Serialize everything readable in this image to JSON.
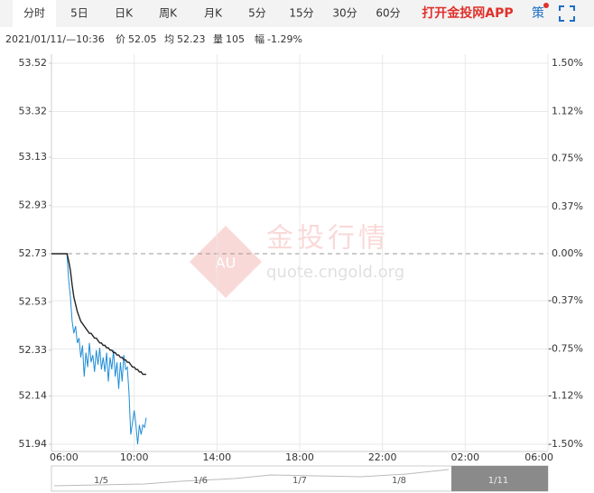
{
  "tabs": [
    "分时",
    "5日",
    "日K",
    "周K",
    "月K",
    "5分",
    "15分",
    "30分",
    "60分"
  ],
  "app_link": "打开金投网APP",
  "strategy": "策",
  "info": {
    "time": "2021/01/11/—10:36",
    "price_label": "价",
    "price": "52.05",
    "avg_label": "均",
    "avg": "52.23",
    "volume_label": "量",
    "volume": "105",
    "change_label": "幅",
    "change": "-1.29%"
  },
  "watermark": {
    "logo": "AU",
    "name": "金投行情",
    "site": "quote.cngold.org"
  },
  "navigator": {
    "labels": [
      "1/5",
      "1/6",
      "1/7",
      "1/8",
      "1/11"
    ]
  },
  "chart_data": {
    "type": "line",
    "x": [
      "06:00",
      "06:05",
      "06:10",
      "06:15",
      "06:20",
      "06:25",
      "06:30",
      "06:35",
      "06:40",
      "06:45",
      "06:50",
      "06:55",
      "07:00",
      "07:05",
      "07:10",
      "07:15",
      "07:20",
      "07:25",
      "07:30",
      "07:35",
      "07:40",
      "07:45",
      "07:50",
      "07:55",
      "08:00",
      "08:05",
      "08:10",
      "08:15",
      "08:20",
      "08:25",
      "08:30",
      "08:35",
      "08:40",
      "08:45",
      "08:50",
      "08:55",
      "09:00",
      "09:05",
      "09:10",
      "09:15",
      "09:20",
      "09:25",
      "09:30",
      "09:35",
      "09:40",
      "09:45",
      "09:50",
      "09:55",
      "10:00",
      "10:05",
      "10:10",
      "10:15",
      "10:20",
      "10:25",
      "10:30",
      "10:35"
    ],
    "series": [
      {
        "color": "#1f8dd6",
        "values": [
          52.73,
          52.73,
          52.73,
          52.73,
          52.73,
          52.73,
          52.73,
          52.73,
          52.73,
          52.73,
          52.62,
          52.55,
          52.45,
          52.4,
          52.43,
          52.36,
          52.38,
          52.3,
          52.35,
          52.22,
          52.32,
          52.26,
          52.36,
          52.28,
          52.31,
          52.24,
          52.33,
          52.27,
          52.34,
          52.25,
          52.3,
          52.24,
          52.32,
          52.2,
          52.3,
          52.25,
          52.33,
          52.22,
          52.28,
          52.17,
          52.28,
          52.2,
          52.31,
          52.25,
          52.26,
          52.15,
          51.98,
          52.03,
          52.08,
          52.02,
          51.94,
          52.02,
          51.98,
          52.02,
          52.01,
          52.05
        ]
      },
      {
        "color": "#222222",
        "values": [
          52.73,
          52.73,
          52.73,
          52.73,
          52.73,
          52.73,
          52.73,
          52.73,
          52.73,
          52.73,
          52.7,
          52.66,
          52.6,
          52.55,
          52.52,
          52.49,
          52.47,
          52.45,
          52.44,
          52.43,
          52.42,
          52.41,
          52.4,
          52.4,
          52.39,
          52.38,
          52.38,
          52.37,
          52.36,
          52.36,
          52.35,
          52.35,
          52.34,
          52.34,
          52.33,
          52.33,
          52.32,
          52.32,
          52.31,
          52.31,
          52.3,
          52.3,
          52.29,
          52.29,
          52.28,
          52.28,
          52.27,
          52.26,
          52.26,
          52.25,
          52.25,
          52.24,
          52.24,
          52.23,
          52.23,
          52.23
        ]
      }
    ],
    "xticks": [
      "06:00",
      "10:00",
      "14:00",
      "18:00",
      "22:00",
      "02:00",
      "06:00"
    ],
    "ylim": [
      51.94,
      53.52
    ],
    "yticks": [
      53.52,
      53.32,
      53.13,
      52.93,
      52.73,
      52.53,
      52.33,
      52.14,
      51.94
    ],
    "y2lim": [
      -1.5,
      1.5
    ],
    "y2ticks": [
      {
        "value": 1.5,
        "label": "1.50%"
      },
      {
        "value": 1.12,
        "label": "1.12%"
      },
      {
        "value": 0.75,
        "label": "0.75%"
      },
      {
        "value": 0.37,
        "label": "0.37%"
      },
      {
        "value": 0,
        "label": "0.00%"
      },
      {
        "value": -0.37,
        "label": "-0.37%"
      },
      {
        "value": -0.75,
        "label": "-0.75%"
      },
      {
        "value": -1.12,
        "label": "-1.12%"
      },
      {
        "value": -1.5,
        "label": "-1.50%"
      }
    ],
    "up_color": "#e0312b",
    "down_color": "#1a9a2a",
    "flat_color": "#333333",
    "grid": true
  }
}
